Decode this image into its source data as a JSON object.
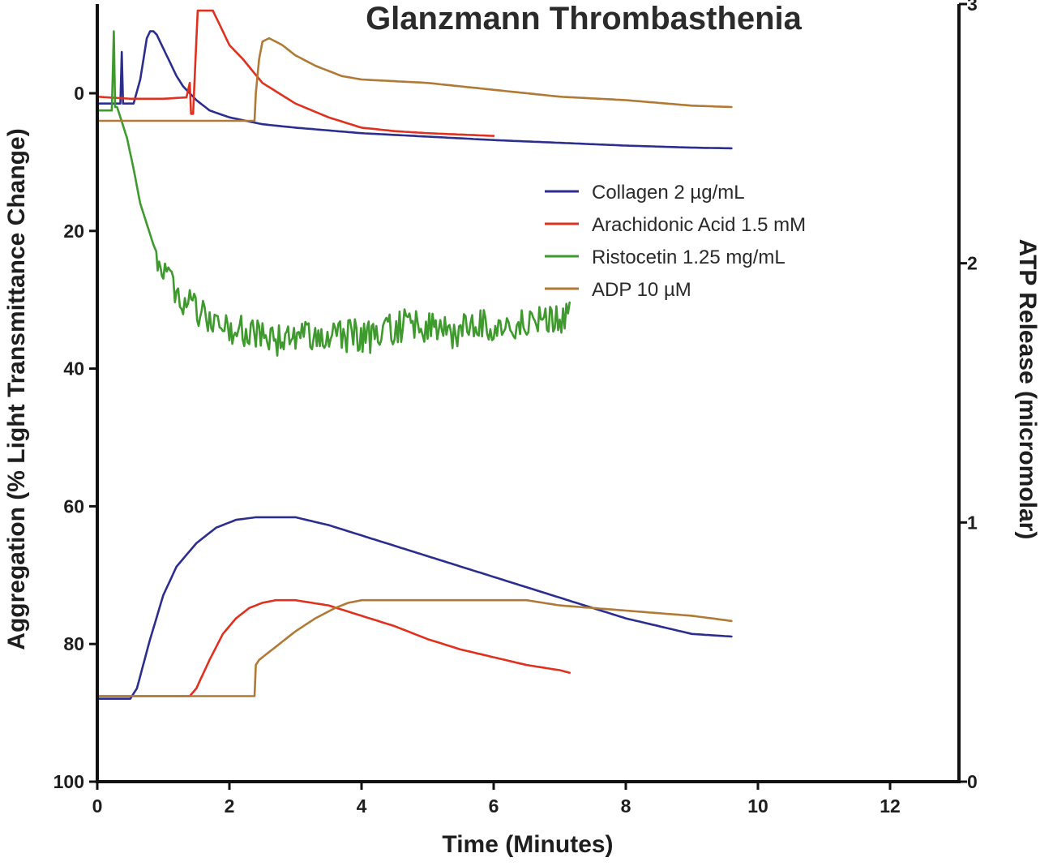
{
  "chart_data": {
    "type": "line",
    "title": "Glanzmann Thrombasthenia",
    "xlabel": "Time (Minutes)",
    "ylabel": "Aggregation (% Light Transmittance Change)",
    "y2label": "ATP Release (micromolar)",
    "xlim": [
      0,
      13
    ],
    "ylim": [
      100,
      -12
    ],
    "y_inverted": true,
    "y2lim": [
      0,
      3
    ],
    "x_ticks": [
      0,
      2,
      4,
      6,
      8,
      10,
      12
    ],
    "x_tick_labels": [
      "0",
      "2",
      "4",
      "6",
      "8",
      "10",
      "12"
    ],
    "y_ticks": [
      0,
      20,
      40,
      60,
      80,
      100
    ],
    "y_tick_labels": [
      "0",
      "20",
      "40",
      "60",
      "80",
      "100"
    ],
    "y2_ticks": [
      0,
      1,
      2,
      3
    ],
    "y2_tick_labels": [
      "0",
      "1",
      "2",
      "3"
    ],
    "grid": false,
    "legend_position": "center-right",
    "series": [
      {
        "name": "Collagen 2 µg/mL",
        "color": "#2b2d8f",
        "aggregation": {
          "x": [
            0,
            0.2,
            0.35,
            0.37,
            0.39,
            0.55,
            0.65,
            0.75,
            0.8,
            0.85,
            0.9,
            1.0,
            1.1,
            1.2,
            1.3,
            1.5,
            1.7,
            2.0,
            2.5,
            3.0,
            4.0,
            5.0,
            6.0,
            7.0,
            8.0,
            9.0,
            9.6
          ],
          "y": [
            1.5,
            1.5,
            1.5,
            -6,
            1.5,
            1.5,
            -2,
            -8,
            -9,
            -9,
            -8.5,
            -6.5,
            -4.5,
            -2.5,
            -1,
            1,
            2.5,
            3.5,
            4.5,
            5,
            5.8,
            6.3,
            6.8,
            7.2,
            7.6,
            7.9,
            8
          ]
        },
        "atp": {
          "x": [
            0,
            0.5,
            0.6,
            0.8,
            1.0,
            1.2,
            1.5,
            1.8,
            2.1,
            2.4,
            3.0,
            3.5,
            4.0,
            5.0,
            6.0,
            7.0,
            8.0,
            9.0,
            9.6
          ],
          "y": [
            0.32,
            0.32,
            0.36,
            0.55,
            0.72,
            0.83,
            0.92,
            0.98,
            1.01,
            1.02,
            1.02,
            0.99,
            0.95,
            0.87,
            0.79,
            0.71,
            0.63,
            0.57,
            0.56
          ]
        }
      },
      {
        "name": "Arachidonic Acid 1.5 mM",
        "color": "#e0301e",
        "aggregation": {
          "x": [
            0,
            0.5,
            1.0,
            1.35,
            1.4,
            1.42,
            1.45,
            1.52,
            1.6,
            1.75,
            1.85,
            2.0,
            2.2,
            2.5,
            3.0,
            3.5,
            4.0,
            4.5,
            5.0,
            5.5,
            6.0
          ],
          "y": [
            0.5,
            0.8,
            0.8,
            0.6,
            -1.5,
            3,
            3,
            -12,
            -12,
            -12,
            -10,
            -7,
            -5,
            -1.5,
            1.5,
            3.5,
            5,
            5.5,
            5.8,
            6,
            6.2
          ]
        },
        "atp": {
          "x": [
            0,
            1.4,
            1.5,
            1.7,
            1.9,
            2.1,
            2.3,
            2.5,
            2.7,
            3.0,
            3.5,
            4.0,
            4.5,
            5.0,
            5.5,
            6.0,
            6.5,
            7.0,
            7.15
          ],
          "y": [
            0.33,
            0.33,
            0.36,
            0.47,
            0.57,
            0.63,
            0.67,
            0.69,
            0.7,
            0.7,
            0.68,
            0.64,
            0.6,
            0.55,
            0.51,
            0.48,
            0.45,
            0.43,
            0.42
          ]
        }
      },
      {
        "name": "Ristocetin 1.25 mg/mL",
        "color": "#3e9a2c",
        "aggregation": {
          "x": [
            0,
            0.22,
            0.25,
            0.27,
            0.3,
            0.35,
            0.45,
            0.55,
            0.65,
            0.75,
            0.85,
            1.0,
            1.2,
            1.4,
            1.6,
            1.8,
            2.0,
            2.2,
            2.5,
            2.8,
            3.0,
            3.3,
            3.6,
            3.9,
            4.2,
            4.5,
            4.8,
            5.1,
            5.4,
            5.7,
            6.0,
            6.3,
            6.6,
            6.9,
            7.15
          ],
          "y": [
            2.5,
            2.5,
            -9,
            2,
            2,
            3.5,
            6.5,
            11,
            16,
            19,
            22,
            25.5,
            28.5,
            31,
            32.5,
            33.5,
            34,
            34.5,
            35,
            36,
            35.5,
            35,
            35.5,
            35,
            35.5,
            34,
            33.5,
            34.5,
            35,
            33.5,
            34,
            34,
            33.5,
            33,
            32.5
          ]
        }
      },
      {
        "name": "ADP 10 µM",
        "color": "#b07a36",
        "aggregation": {
          "x": [
            0,
            0.5,
            1.0,
            1.5,
            2.0,
            2.38,
            2.4,
            2.45,
            2.5,
            2.6,
            2.7,
            2.8,
            3.0,
            3.3,
            3.7,
            4.0,
            5.0,
            6.0,
            7.0,
            8.0,
            9.0,
            9.6
          ],
          "y": [
            4,
            4,
            4,
            4,
            4,
            4,
            0,
            -5,
            -7.5,
            -8,
            -7.5,
            -7,
            -5.5,
            -4,
            -2.5,
            -2,
            -1.5,
            -0.5,
            0.5,
            1,
            1.8,
            2
          ]
        },
        "atp": {
          "x": [
            0,
            2.38,
            2.4,
            2.45,
            2.6,
            2.8,
            3.0,
            3.3,
            3.6,
            3.8,
            4.0,
            5.0,
            6.0,
            6.5,
            7.0,
            8.0,
            9.0,
            9.6
          ],
          "y": [
            0.33,
            0.33,
            0.45,
            0.47,
            0.5,
            0.54,
            0.58,
            0.63,
            0.67,
            0.69,
            0.7,
            0.7,
            0.7,
            0.7,
            0.68,
            0.66,
            0.64,
            0.62
          ]
        }
      }
    ]
  }
}
